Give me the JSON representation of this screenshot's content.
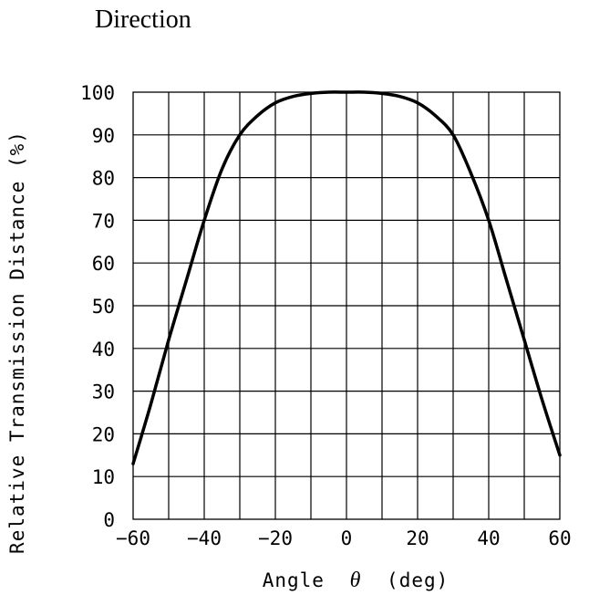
{
  "title": "Direction",
  "chart_data": {
    "type": "line",
    "xlabel_prefix": "Angle",
    "xlabel_symbol": "θ",
    "xlabel_suffix": "(deg)",
    "ylabel": "Relative Transmission Distance (%)",
    "xlim": [
      -60,
      60
    ],
    "ylim": [
      0,
      100
    ],
    "xticks": [
      -60,
      -40,
      -20,
      0,
      20,
      40,
      60
    ],
    "yticks": [
      0,
      10,
      20,
      30,
      40,
      50,
      60,
      70,
      80,
      90,
      100
    ],
    "grid": true,
    "legend": "none",
    "series": [
      {
        "color": "#000000",
        "x": [
          -60,
          -55,
          -50,
          -45,
          -40,
          -35,
          -30,
          -25,
          -20,
          -15,
          -10,
          -5,
          0,
          5,
          10,
          15,
          20,
          25,
          30,
          35,
          40,
          45,
          50,
          55,
          60
        ],
        "y": [
          13,
          27,
          42,
          56,
          70,
          82,
          90,
          94.5,
          97.5,
          99,
          99.7,
          100,
          100,
          100,
          99.7,
          99,
          97.5,
          94.5,
          90,
          81,
          70,
          56,
          42,
          28,
          15
        ]
      }
    ]
  }
}
